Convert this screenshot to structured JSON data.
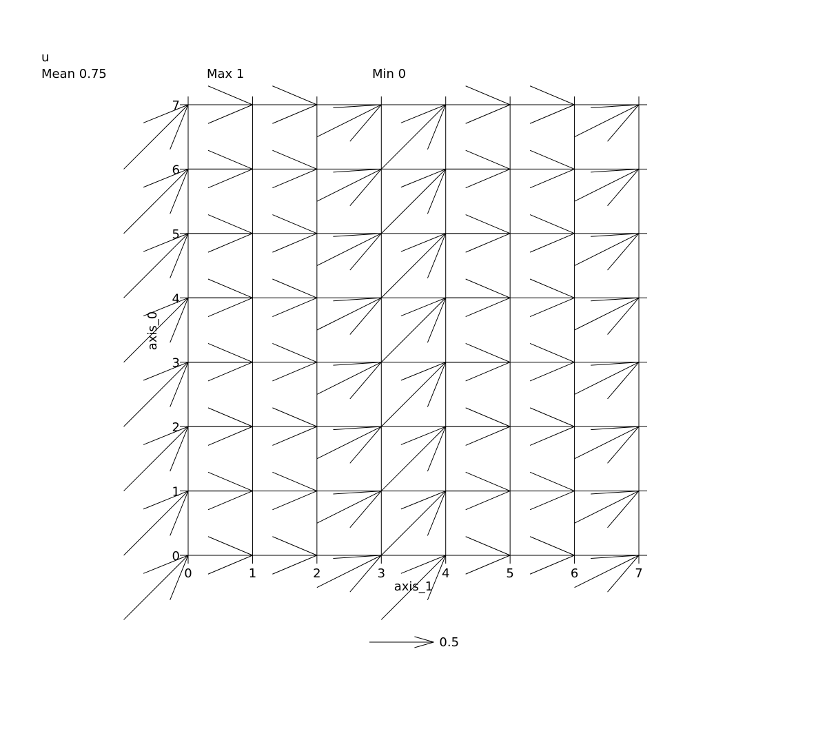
{
  "header": {
    "field_name": "u",
    "mean_label": "Mean 0.75",
    "max_label": "Max 1",
    "min_label": "Min 0"
  },
  "colors": {
    "line": "#000000",
    "background": "#ffffff"
  },
  "chart_data": {
    "type": "quiver",
    "xlabel": "axis_1",
    "ylabel": "axis_0",
    "xlim": [
      0,
      7
    ],
    "ylim": [
      0,
      7
    ],
    "xticks": [
      "0",
      "1",
      "2",
      "3",
      "4",
      "5",
      "6",
      "7"
    ],
    "yticks": [
      "0",
      "1",
      "2",
      "3",
      "4",
      "5",
      "6",
      "7"
    ],
    "grid": "cell edges",
    "quiver_key": {
      "length": 0.5,
      "label": "0.5"
    },
    "vectors_by_column": [
      {
        "x": 0,
        "u": 1.0,
        "v": 1.0
      },
      {
        "x": 1,
        "u": 1.0,
        "v": 0.0
      },
      {
        "x": 2,
        "u": 0.0,
        "v": 0.0
      },
      {
        "x": 3,
        "u": 1.0,
        "v": 0.5
      },
      {
        "x": 4,
        "u": 1.0,
        "v": 1.0
      },
      {
        "x": 5,
        "u": 1.0,
        "v": 0.0
      },
      {
        "x": 6,
        "u": 0.0,
        "v": 0.0
      },
      {
        "x": 7,
        "u": 1.0,
        "v": 0.5
      }
    ]
  }
}
